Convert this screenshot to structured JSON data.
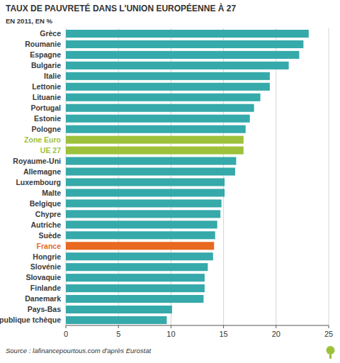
{
  "chart_data": {
    "type": "bar",
    "title": "TAUX DE PAUVRETÉ DANS L'UNION EUROPÉENNE À 27",
    "subtitle": "EN 2011, EN %",
    "source": "Source : lafinancepourtous.com d'après Eurostat",
    "orientation": "horizontal",
    "categories": [
      "Grèce",
      "Roumanie",
      "Espagne",
      "Bulgarie",
      "Italie",
      "Lettonie",
      "Lituanie",
      "Portugal",
      "Estonie",
      "Pologne",
      "Zone Euro",
      "UE 27",
      "Royaume-Uni",
      "Allemagne",
      "Luxembourg",
      "Malte",
      "Belgique",
      "Chypre",
      "Autriche",
      "Suède",
      "France",
      "Hongrie",
      "Slovénie",
      "Slovaquie",
      "Finlande",
      "Danemark",
      "Pays-Bas",
      "République tchèque"
    ],
    "values": [
      23.1,
      22.6,
      22.2,
      21.2,
      19.4,
      19.4,
      18.5,
      17.9,
      17.5,
      17.1,
      16.9,
      16.9,
      16.2,
      16.1,
      15.1,
      15.1,
      14.8,
      14.7,
      14.4,
      14.2,
      14.1,
      14.0,
      13.5,
      13.2,
      13.2,
      13.1,
      10.1,
      9.6
    ],
    "color": "#36a9aa",
    "colors": [
      "#36a9aa",
      "#36a9aa",
      "#36a9aa",
      "#36a9aa",
      "#36a9aa",
      "#36a9aa",
      "#36a9aa",
      "#36a9aa",
      "#36a9aa",
      "#36a9aa",
      "#9dc13b",
      "#9dc13b",
      "#36a9aa",
      "#36a9aa",
      "#36a9aa",
      "#36a9aa",
      "#36a9aa",
      "#36a9aa",
      "#36a9aa",
      "#36a9aa",
      "#e8691f",
      "#36a9aa",
      "#36a9aa",
      "#36a9aa",
      "#36a9aa",
      "#36a9aa",
      "#36a9aa",
      "#36a9aa"
    ],
    "xlim": [
      0,
      25
    ],
    "xticks": [
      0,
      5,
      10,
      15,
      20,
      25
    ],
    "grid": true
  }
}
